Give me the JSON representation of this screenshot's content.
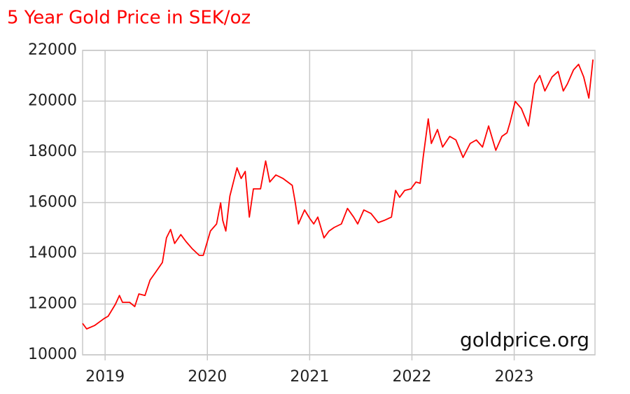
{
  "chart_data": {
    "type": "line",
    "title": "5 Year Gold Price in SEK/oz",
    "watermark": "goldprice.org",
    "x": [
      2018.78,
      2018.82,
      2018.9,
      2018.99,
      2019.03,
      2019.1,
      2019.14,
      2019.17,
      2019.24,
      2019.29,
      2019.33,
      2019.39,
      2019.44,
      2019.49,
      2019.56,
      2019.6,
      2019.64,
      2019.68,
      2019.74,
      2019.79,
      2019.85,
      2019.92,
      2019.96,
      2020.03,
      2020.09,
      2020.13,
      2020.15,
      2020.18,
      2020.22,
      2020.29,
      2020.33,
      2020.37,
      2020.41,
      2020.45,
      2020.52,
      2020.57,
      2020.61,
      2020.67,
      2020.74,
      2020.83,
      2020.86,
      2020.89,
      2020.95,
      2021.0,
      2021.04,
      2021.08,
      2021.14,
      2021.19,
      2021.24,
      2021.31,
      2021.37,
      2021.43,
      2021.47,
      2021.53,
      2021.6,
      2021.67,
      2021.73,
      2021.8,
      2021.84,
      2021.88,
      2021.93,
      2021.99,
      2022.04,
      2022.08,
      2022.11,
      2022.16,
      2022.19,
      2022.25,
      2022.3,
      2022.37,
      2022.43,
      2022.5,
      2022.57,
      2022.63,
      2022.69,
      2022.75,
      2022.82,
      2022.88,
      2022.93,
      2022.96,
      2023.01,
      2023.07,
      2023.14,
      2023.2,
      2023.25,
      2023.3,
      2023.37,
      2023.43,
      2023.48,
      2023.52,
      2023.58,
      2023.63,
      2023.68,
      2023.73,
      2023.77
    ],
    "series": [
      {
        "name": "Gold Price",
        "color": "#ff0000",
        "values": [
          11240,
          11020,
          11160,
          11430,
          11520,
          11990,
          12340,
          12070,
          12070,
          11900,
          12400,
          12340,
          12950,
          13230,
          13640,
          14610,
          14940,
          14390,
          14740,
          14470,
          14190,
          13920,
          13920,
          14880,
          15160,
          15990,
          15300,
          14880,
          16260,
          17370,
          16950,
          17230,
          15430,
          16540,
          16540,
          17640,
          16810,
          17090,
          16950,
          16680,
          15990,
          15160,
          15710,
          15380,
          15160,
          15430,
          14610,
          14880,
          15020,
          15160,
          15770,
          15430,
          15160,
          15710,
          15570,
          15210,
          15300,
          15430,
          16480,
          16210,
          16480,
          16540,
          16810,
          16760,
          17780,
          19300,
          18330,
          18880,
          18190,
          18610,
          18470,
          17780,
          18330,
          18470,
          18190,
          19020,
          18060,
          18610,
          18750,
          19160,
          19990,
          19710,
          19020,
          20680,
          21010,
          20400,
          20950,
          21170,
          20400,
          20680,
          21230,
          21450,
          20950,
          20120,
          21640
        ]
      }
    ],
    "xlim": [
      2018.78,
      2023.79
    ],
    "xticks": [
      2019,
      2020,
      2021,
      2022,
      2023
    ],
    "ylim": [
      10000,
      22000
    ],
    "yticks": [
      10000,
      12000,
      14000,
      16000,
      18000,
      20000,
      22000
    ],
    "grid": true
  }
}
